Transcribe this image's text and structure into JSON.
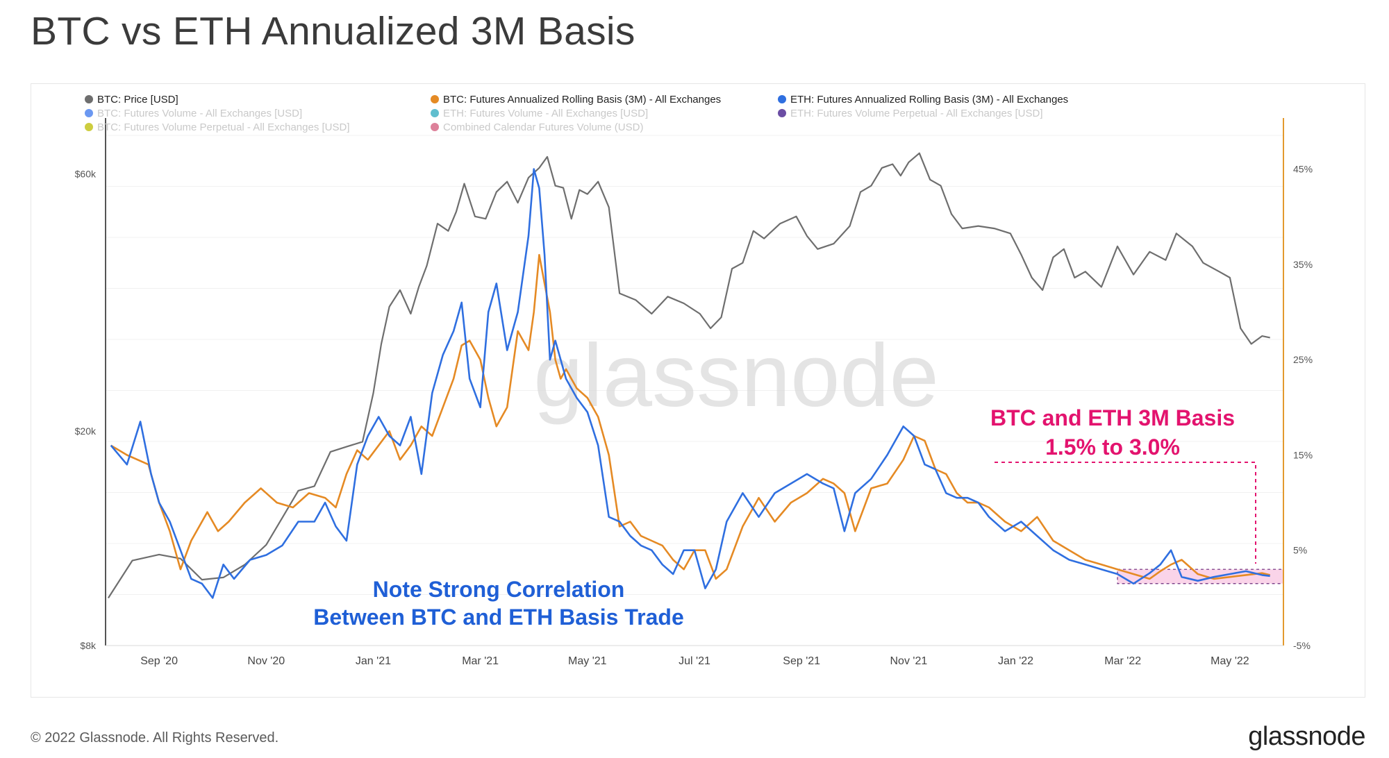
{
  "header": {
    "title": "BTC vs ETH Annualized 3M Basis"
  },
  "footer": {
    "copyright": "© 2022 Glassnode. All Rights Reserved.",
    "logo": "glassnode"
  },
  "watermark": "glassnode",
  "colors": {
    "btc_price": "#6e6e6e",
    "btc_basis": "#e58a24",
    "eth_basis": "#2f6fe0",
    "annotation_red": "#e3136e",
    "annotation_blue": "#1f5fd6",
    "right_axis": "#e39a2e",
    "highlight_fill": "#f8c6e2"
  },
  "annotations": {
    "correlation": [
      "Note Strong Correlation",
      "Between BTC and ETH Basis Trade"
    ],
    "range": [
      "BTC and ETH 3M Basis",
      "1.5% to 3.0%"
    ]
  },
  "chart_data": {
    "type": "line",
    "title": "BTC vs ETH Annualized 3M Basis",
    "legend": {
      "placement": "top-left",
      "items": [
        {
          "label": "BTC: Price [USD]",
          "color": "#6e6e6e",
          "active": true
        },
        {
          "label": "BTC: Futures Annualized Rolling Basis (3M) - All Exchanges",
          "color": "#e58a24",
          "active": true
        },
        {
          "label": "ETH: Futures Annualized Rolling Basis (3M) - All Exchanges",
          "color": "#2f6fe0",
          "active": true
        },
        {
          "label": "BTC: Futures Volume - All Exchanges [USD]",
          "color": "#5b8def",
          "active": false
        },
        {
          "label": "ETH: Futures Volume - All Exchanges [USD]",
          "color": "#4fb7c9",
          "active": false
        },
        {
          "label": "ETH: Futures Volume Perpetual - All Exchanges [USD]",
          "color": "#5b3a9a",
          "active": false
        },
        {
          "label": "BTC: Futures Volume Perpetual - All Exchanges [USD]",
          "color": "#c8c82a",
          "active": false
        },
        {
          "label": "Combined Calendar Futures Volume (USD)",
          "color": "#d9738f",
          "active": false
        }
      ]
    },
    "x_axis": {
      "range": [
        0,
        22
      ],
      "unit": "months since 2020-08-01",
      "ticks": [
        {
          "t": 1,
          "label": "Sep '20"
        },
        {
          "t": 3,
          "label": "Nov '20"
        },
        {
          "t": 5,
          "label": "Jan '21"
        },
        {
          "t": 7,
          "label": "Mar '21"
        },
        {
          "t": 9,
          "label": "May '21"
        },
        {
          "t": 11,
          "label": "Jul '21"
        },
        {
          "t": 13,
          "label": "Sep '21"
        },
        {
          "t": 15,
          "label": "Nov '21"
        },
        {
          "t": 17,
          "label": "Jan '22"
        },
        {
          "t": 19,
          "label": "Mar '22"
        },
        {
          "t": 21,
          "label": "May '22"
        }
      ]
    },
    "y_left": {
      "scale": "log",
      "range": [
        8000,
        75000
      ],
      "ticks": [
        {
          "v": 8000,
          "label": "$8k"
        },
        {
          "v": 20000,
          "label": "$20k"
        },
        {
          "v": 60000,
          "label": "$60k"
        }
      ]
    },
    "y_right": {
      "scale": "linear",
      "range": [
        -5,
        50
      ],
      "ticks": [
        {
          "v": -5,
          "label": "-5%"
        },
        {
          "v": 5,
          "label": "5%"
        },
        {
          "v": 15,
          "label": "15%"
        },
        {
          "v": 25,
          "label": "25%"
        },
        {
          "v": 35,
          "label": "35%"
        },
        {
          "v": 45,
          "label": "45%"
        }
      ]
    },
    "highlight_band": {
      "t_start": 18.9,
      "t_end": 22,
      "y_low": 1.5,
      "y_high": 3.0,
      "unit": "%"
    },
    "series": [
      {
        "name": "BTC: Price [USD]",
        "axis": "left",
        "color": "#6e6e6e",
        "x": [
          0.05,
          0.5,
          1.0,
          1.4,
          1.8,
          2.2,
          2.6,
          3.0,
          3.3,
          3.6,
          3.9,
          4.2,
          4.5,
          4.8,
          5.0,
          5.15,
          5.3,
          5.5,
          5.7,
          5.85,
          6.0,
          6.2,
          6.4,
          6.55,
          6.7,
          6.9,
          7.1,
          7.3,
          7.5,
          7.7,
          7.9,
          8.1,
          8.25,
          8.4,
          8.55,
          8.7,
          8.85,
          9.0,
          9.2,
          9.4,
          9.6,
          9.9,
          10.2,
          10.5,
          10.8,
          11.1,
          11.3,
          11.5,
          11.7,
          11.9,
          12.1,
          12.3,
          12.6,
          12.9,
          13.1,
          13.3,
          13.6,
          13.9,
          14.1,
          14.3,
          14.5,
          14.7,
          14.85,
          15.0,
          15.2,
          15.4,
          15.6,
          15.8,
          16.0,
          16.3,
          16.6,
          16.9,
          17.1,
          17.3,
          17.5,
          17.7,
          17.9,
          18.1,
          18.3,
          18.6,
          18.9,
          19.2,
          19.5,
          19.8,
          20.0,
          20.3,
          20.5,
          20.8,
          21.0,
          21.2,
          21.4,
          21.6,
          21.75
        ],
        "values": [
          9800,
          11500,
          11800,
          11600,
          10600,
          10700,
          11300,
          12300,
          13800,
          15500,
          15800,
          18300,
          18700,
          19100,
          23500,
          29000,
          34000,
          36500,
          33000,
          37000,
          40500,
          48500,
          47000,
          51000,
          57500,
          50000,
          49500,
          55500,
          58000,
          53000,
          59000,
          61500,
          64500,
          57000,
          56500,
          49500,
          56000,
          55000,
          58000,
          52000,
          36000,
          35000,
          33000,
          35500,
          34500,
          33000,
          31000,
          32500,
          40000,
          41000,
          47000,
          45500,
          48500,
          50000,
          46000,
          43500,
          44500,
          48000,
          55500,
          57000,
          61500,
          62500,
          59500,
          63000,
          65500,
          58500,
          57000,
          50500,
          47500,
          48000,
          47500,
          46500,
          42500,
          38500,
          36500,
          42000,
          43500,
          38500,
          39500,
          37000,
          44000,
          39000,
          43000,
          41500,
          46500,
          44000,
          41000,
          39500,
          38500,
          31000,
          29000,
          30000,
          29800
        ]
      },
      {
        "name": "BTC: Futures Annualized Rolling Basis (3M) - All Exchanges",
        "axis": "right",
        "color": "#e58a24",
        "x": [
          0.1,
          0.4,
          0.8,
          1.0,
          1.2,
          1.4,
          1.6,
          1.9,
          2.1,
          2.3,
          2.6,
          2.9,
          3.2,
          3.5,
          3.8,
          4.1,
          4.3,
          4.5,
          4.7,
          4.9,
          5.1,
          5.3,
          5.5,
          5.7,
          5.9,
          6.1,
          6.3,
          6.5,
          6.65,
          6.8,
          7.0,
          7.15,
          7.3,
          7.5,
          7.7,
          7.9,
          8.0,
          8.1,
          8.2,
          8.3,
          8.4,
          8.5,
          8.6,
          8.8,
          9.0,
          9.2,
          9.4,
          9.6,
          9.8,
          10.0,
          10.2,
          10.4,
          10.6,
          10.8,
          11.0,
          11.2,
          11.4,
          11.6,
          11.9,
          12.2,
          12.5,
          12.8,
          13.1,
          13.4,
          13.6,
          13.8,
          14.0,
          14.3,
          14.6,
          14.9,
          15.1,
          15.3,
          15.5,
          15.7,
          15.9,
          16.1,
          16.3,
          16.5,
          16.8,
          17.1,
          17.4,
          17.7,
          18.0,
          18.3,
          18.6,
          18.9,
          19.2,
          19.5,
          19.7,
          19.9,
          20.1,
          20.4,
          20.7,
          21.0,
          21.3,
          21.6,
          21.75
        ],
        "values": [
          16,
          15,
          14,
          10,
          7,
          3,
          6,
          9,
          7,
          8,
          10,
          11.5,
          10,
          9.5,
          11,
          10.5,
          9.5,
          13,
          15.5,
          14.5,
          16,
          17.5,
          14.5,
          16,
          18,
          17,
          20,
          23,
          26.5,
          27,
          25,
          21,
          18,
          20,
          28,
          26,
          30,
          36,
          33,
          30,
          25,
          23,
          24,
          22,
          21,
          19,
          15,
          7.5,
          8,
          6.5,
          6,
          5.5,
          4,
          3,
          5,
          5,
          2,
          3,
          7.5,
          10.5,
          8,
          10,
          11,
          12.5,
          12,
          11,
          7,
          11.5,
          12,
          14.5,
          17,
          16.5,
          13.5,
          13,
          11,
          10,
          10,
          9.5,
          8,
          7,
          8.5,
          6,
          5,
          4,
          3.5,
          3,
          2.5,
          2,
          2.8,
          3.5,
          4,
          2.5,
          2,
          2.2,
          2.4,
          2.6,
          2.4
        ]
      },
      {
        "name": "ETH: Futures Annualized Rolling Basis (3M) - All Exchanges",
        "axis": "right",
        "color": "#2f6fe0",
        "x": [
          0.1,
          0.4,
          0.65,
          0.85,
          1.0,
          1.2,
          1.4,
          1.6,
          1.8,
          2.0,
          2.2,
          2.4,
          2.7,
          3.0,
          3.3,
          3.6,
          3.9,
          4.1,
          4.3,
          4.5,
          4.7,
          4.9,
          5.1,
          5.3,
          5.5,
          5.7,
          5.9,
          6.1,
          6.3,
          6.5,
          6.65,
          6.8,
          7.0,
          7.15,
          7.3,
          7.5,
          7.7,
          7.9,
          8.0,
          8.1,
          8.2,
          8.3,
          8.4,
          8.5,
          8.6,
          8.8,
          9.0,
          9.2,
          9.4,
          9.6,
          9.8,
          10.0,
          10.2,
          10.4,
          10.6,
          10.8,
          11.0,
          11.2,
          11.4,
          11.6,
          11.9,
          12.2,
          12.5,
          12.8,
          13.1,
          13.4,
          13.6,
          13.8,
          14.0,
          14.3,
          14.6,
          14.9,
          15.1,
          15.3,
          15.5,
          15.7,
          15.9,
          16.1,
          16.3,
          16.5,
          16.8,
          17.1,
          17.4,
          17.7,
          18.0,
          18.3,
          18.6,
          18.9,
          19.2,
          19.5,
          19.7,
          19.9,
          20.1,
          20.4,
          20.7,
          21.0,
          21.3,
          21.6,
          21.75
        ],
        "values": [
          16,
          14,
          18.5,
          13,
          10,
          8,
          5,
          2,
          1.5,
          0,
          3.5,
          2,
          4,
          4.5,
          5.5,
          8,
          8,
          10,
          7.5,
          6,
          14,
          17,
          19,
          17,
          16,
          19,
          13,
          21.5,
          25.5,
          28,
          31,
          23,
          20,
          30,
          33,
          26,
          30,
          38,
          45,
          43,
          36,
          25,
          27,
          25,
          23,
          21,
          19.5,
          16,
          8.5,
          8,
          6.5,
          5.5,
          5,
          3.5,
          2.5,
          5,
          5,
          1,
          3,
          8,
          11,
          8.5,
          11,
          12,
          13,
          12,
          11.5,
          7,
          11,
          12.5,
          15,
          18,
          17,
          14,
          13.5,
          11,
          10.5,
          10.5,
          10,
          8.5,
          7,
          8,
          6.5,
          5,
          4,
          3.5,
          3,
          2.5,
          1.5,
          2.6,
          3.5,
          5,
          2.2,
          1.8,
          2.2,
          2.5,
          2.8,
          2.4,
          2.3
        ]
      }
    ]
  }
}
